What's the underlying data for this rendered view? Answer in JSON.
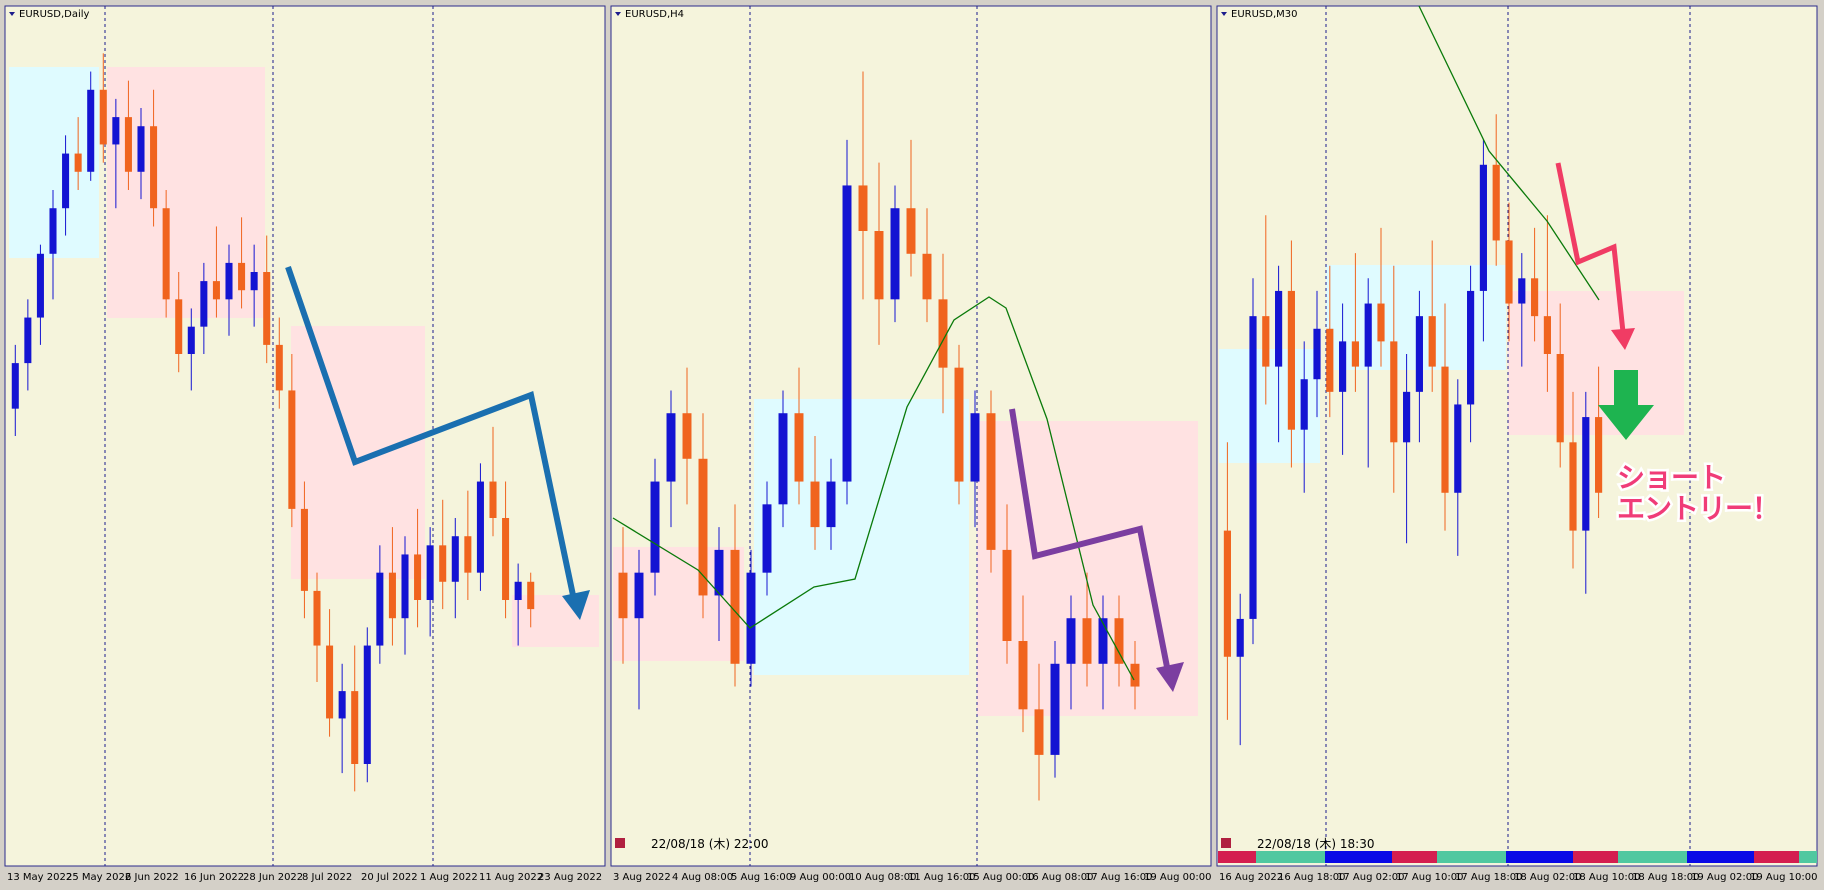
{
  "panels": [
    {
      "title": "EURUSD,Daily",
      "ylim": [
        0.99,
        1.08
      ],
      "x_labels": [
        "13 May 2022",
        "25 May 2022",
        "6 Jun 2022",
        "16 Jun 2022",
        "28 Jun 2022",
        "8 Jul 2022",
        "20 Jul 2022",
        "1 Aug 2022",
        "11 Aug 2022",
        "23 Aug 2022"
      ],
      "candles": [
        [
          1.038,
          1.045,
          1.035,
          1.043
        ],
        [
          1.043,
          1.05,
          1.04,
          1.048
        ],
        [
          1.048,
          1.056,
          1.045,
          1.055
        ],
        [
          1.055,
          1.062,
          1.05,
          1.06
        ],
        [
          1.06,
          1.068,
          1.057,
          1.066
        ],
        [
          1.066,
          1.07,
          1.062,
          1.064
        ],
        [
          1.064,
          1.075,
          1.063,
          1.073
        ],
        [
          1.073,
          1.077,
          1.065,
          1.067
        ],
        [
          1.067,
          1.072,
          1.06,
          1.07
        ],
        [
          1.07,
          1.074,
          1.062,
          1.064
        ],
        [
          1.064,
          1.071,
          1.061,
          1.069
        ],
        [
          1.069,
          1.073,
          1.058,
          1.06
        ],
        [
          1.06,
          1.062,
          1.048,
          1.05
        ],
        [
          1.05,
          1.053,
          1.042,
          1.044
        ],
        [
          1.044,
          1.049,
          1.04,
          1.047
        ],
        [
          1.047,
          1.054,
          1.044,
          1.052
        ],
        [
          1.052,
          1.058,
          1.048,
          1.05
        ],
        [
          1.05,
          1.056,
          1.046,
          1.054
        ],
        [
          1.054,
          1.059,
          1.049,
          1.051
        ],
        [
          1.051,
          1.056,
          1.047,
          1.053
        ],
        [
          1.053,
          1.057,
          1.043,
          1.045
        ],
        [
          1.045,
          1.048,
          1.038,
          1.04
        ],
        [
          1.04,
          1.044,
          1.025,
          1.027
        ],
        [
          1.027,
          1.03,
          1.015,
          1.018
        ],
        [
          1.018,
          1.02,
          1.008,
          1.012
        ],
        [
          1.012,
          1.016,
          1.002,
          1.004
        ],
        [
          1.004,
          1.01,
          0.998,
          1.007
        ],
        [
          1.007,
          1.012,
          0.996,
          0.999
        ],
        [
          0.999,
          1.014,
          0.997,
          1.012
        ],
        [
          1.012,
          1.023,
          1.01,
          1.02
        ],
        [
          1.02,
          1.025,
          1.012,
          1.015
        ],
        [
          1.015,
          1.024,
          1.011,
          1.022
        ],
        [
          1.022,
          1.027,
          1.014,
          1.017
        ],
        [
          1.017,
          1.025,
          1.013,
          1.023
        ],
        [
          1.023,
          1.028,
          1.016,
          1.019
        ],
        [
          1.019,
          1.026,
          1.015,
          1.024
        ],
        [
          1.024,
          1.029,
          1.017,
          1.02
        ],
        [
          1.02,
          1.032,
          1.018,
          1.03
        ],
        [
          1.03,
          1.036,
          1.024,
          1.026
        ],
        [
          1.026,
          1.03,
          1.015,
          1.017
        ],
        [
          1.017,
          1.021,
          1.012,
          1.019
        ],
        [
          1.019,
          1.02,
          1.014,
          1.016
        ]
      ]
    },
    {
      "title": "EURUSD,H4",
      "ylim": [
        1.004,
        1.04
      ],
      "timestamp": "22/08/18 (木) 22:00",
      "x_labels": [
        "3 Aug 2022",
        "4 Aug 08:00",
        "5 Aug 16:00",
        "9 Aug 00:00",
        "10 Aug 08:00",
        "11 Aug 16:00",
        "15 Aug 00:00",
        "16 Aug 08:00",
        "17 Aug 16:00",
        "19 Aug 00:00"
      ],
      "candles": [
        [
          1.016,
          1.018,
          1.012,
          1.014
        ],
        [
          1.014,
          1.017,
          1.01,
          1.016
        ],
        [
          1.016,
          1.021,
          1.015,
          1.02
        ],
        [
          1.02,
          1.024,
          1.018,
          1.023
        ],
        [
          1.023,
          1.025,
          1.019,
          1.021
        ],
        [
          1.021,
          1.023,
          1.014,
          1.015
        ],
        [
          1.015,
          1.018,
          1.013,
          1.017
        ],
        [
          1.017,
          1.019,
          1.011,
          1.012
        ],
        [
          1.012,
          1.017,
          1.011,
          1.016
        ],
        [
          1.016,
          1.02,
          1.015,
          1.019
        ],
        [
          1.019,
          1.024,
          1.018,
          1.023
        ],
        [
          1.023,
          1.025,
          1.019,
          1.02
        ],
        [
          1.02,
          1.022,
          1.017,
          1.018
        ],
        [
          1.018,
          1.021,
          1.017,
          1.02
        ],
        [
          1.02,
          1.035,
          1.019,
          1.033
        ],
        [
          1.033,
          1.038,
          1.028,
          1.031
        ],
        [
          1.031,
          1.034,
          1.026,
          1.028
        ],
        [
          1.028,
          1.033,
          1.027,
          1.032
        ],
        [
          1.032,
          1.035,
          1.029,
          1.03
        ],
        [
          1.03,
          1.032,
          1.027,
          1.028
        ],
        [
          1.028,
          1.03,
          1.023,
          1.025
        ],
        [
          1.025,
          1.026,
          1.019,
          1.02
        ],
        [
          1.02,
          1.024,
          1.018,
          1.023
        ],
        [
          1.023,
          1.024,
          1.016,
          1.017
        ],
        [
          1.017,
          1.019,
          1.012,
          1.013
        ],
        [
          1.013,
          1.015,
          1.009,
          1.01
        ],
        [
          1.01,
          1.012,
          1.006,
          1.008
        ],
        [
          1.008,
          1.013,
          1.007,
          1.012
        ],
        [
          1.012,
          1.015,
          1.01,
          1.014
        ],
        [
          1.014,
          1.016,
          1.011,
          1.012
        ],
        [
          1.012,
          1.015,
          1.01,
          1.014
        ],
        [
          1.014,
          1.015,
          1.011,
          1.012
        ],
        [
          1.012,
          1.013,
          1.01,
          1.011
        ]
      ]
    },
    {
      "title": "EURUSD,M30",
      "ylim": [
        1.014,
        1.0205
      ],
      "timestamp": "22/08/18 (木) 18:30",
      "x_labels": [
        "16 Aug 2022",
        "16 Aug 18:00",
        "17 Aug 02:00",
        "17 Aug 10:00",
        "17 Aug 18:00",
        "18 Aug 02:00",
        "18 Aug 10:00",
        "18 Aug 18:00",
        "19 Aug 02:00",
        "19 Aug 10:00"
      ],
      "candles": [
        [
          1.0165,
          1.0172,
          1.015,
          1.0155
        ],
        [
          1.0155,
          1.016,
          1.0148,
          1.0158
        ],
        [
          1.0158,
          1.0185,
          1.0156,
          1.0182
        ],
        [
          1.0182,
          1.019,
          1.0175,
          1.0178
        ],
        [
          1.0178,
          1.0186,
          1.0172,
          1.0184
        ],
        [
          1.0184,
          1.0188,
          1.017,
          1.0173
        ],
        [
          1.0173,
          1.018,
          1.0168,
          1.0177
        ],
        [
          1.0177,
          1.0184,
          1.0174,
          1.0181
        ],
        [
          1.0181,
          1.0186,
          1.0174,
          1.0176
        ],
        [
          1.0176,
          1.0183,
          1.0171,
          1.018
        ],
        [
          1.018,
          1.0187,
          1.0176,
          1.0178
        ],
        [
          1.0178,
          1.0185,
          1.017,
          1.0183
        ],
        [
          1.0183,
          1.0189,
          1.0178,
          1.018
        ],
        [
          1.018,
          1.0186,
          1.0168,
          1.0172
        ],
        [
          1.0172,
          1.0179,
          1.0164,
          1.0176
        ],
        [
          1.0176,
          1.0184,
          1.0172,
          1.0182
        ],
        [
          1.0182,
          1.0188,
          1.0176,
          1.0178
        ],
        [
          1.0178,
          1.0183,
          1.0165,
          1.0168
        ],
        [
          1.0168,
          1.0177,
          1.0163,
          1.0175
        ],
        [
          1.0175,
          1.0186,
          1.0172,
          1.0184
        ],
        [
          1.0184,
          1.0196,
          1.018,
          1.0194
        ],
        [
          1.0194,
          1.0198,
          1.0186,
          1.0188
        ],
        [
          1.0188,
          1.0191,
          1.018,
          1.0183
        ],
        [
          1.0183,
          1.0187,
          1.0178,
          1.0185
        ],
        [
          1.0185,
          1.0189,
          1.018,
          1.0182
        ],
        [
          1.0182,
          1.019,
          1.0176,
          1.0179
        ],
        [
          1.0179,
          1.0183,
          1.017,
          1.0172
        ],
        [
          1.0172,
          1.0176,
          1.0162,
          1.0165
        ],
        [
          1.0165,
          1.0176,
          1.016,
          1.0174
        ],
        [
          1.0174,
          1.0178,
          1.0166,
          1.0168
        ]
      ]
    }
  ],
  "annotation": {
    "lines": [
      "ショート",
      "エントリー！"
    ]
  }
}
